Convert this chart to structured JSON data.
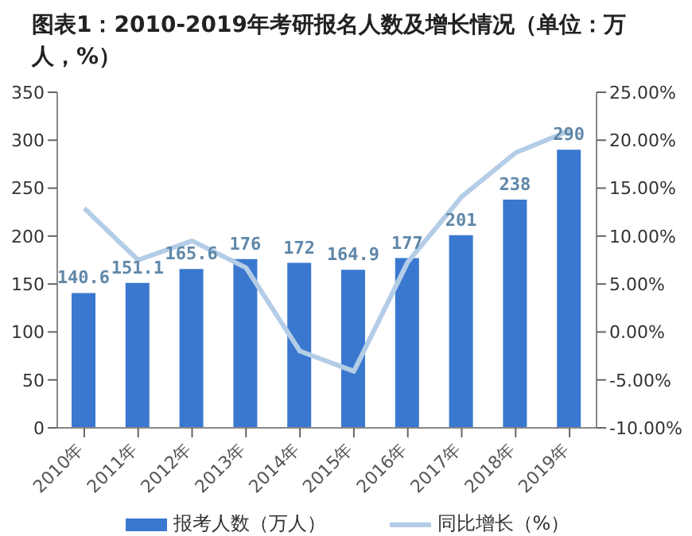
{
  "chart_data": {
    "type": "bar",
    "title": "图表1：2010-2019年考研报名人数及增长情况（单位：万人，%）",
    "categories": [
      "2010年",
      "2011年",
      "2012年",
      "2013年",
      "2014年",
      "2015年",
      "2016年",
      "2017年",
      "2018年",
      "2019年"
    ],
    "series": [
      {
        "name": "报考人数（万人）",
        "color": "#3a78d0",
        "values": [
          140.6,
          151.1,
          165.6,
          176,
          172,
          164.9,
          177,
          201,
          238,
          290
        ],
        "value_labels": [
          "140.6",
          "151.1",
          "165.6",
          "176",
          "172",
          "164.9",
          "177",
          "201",
          "238",
          "290"
        ]
      },
      {
        "name": "同比增长（%）",
        "type": "line",
        "axis": "y2",
        "color": "#b4cde6",
        "values": [
          12.9,
          7.5,
          9.5,
          6.7,
          -2.0,
          -4.1,
          7.3,
          14.1,
          18.7,
          21.0
        ]
      }
    ],
    "ylim": [
      0,
      350
    ],
    "yticks": [
      0,
      50,
      100,
      150,
      200,
      250,
      300,
      350
    ],
    "y2lim": [
      -10,
      25
    ],
    "y2ticks": [
      {
        "value": -10,
        "label": "-10.00%"
      },
      {
        "value": -5,
        "label": "-5.00%"
      },
      {
        "value": 0,
        "label": "0.00%"
      },
      {
        "value": 5,
        "label": "5.00%"
      },
      {
        "value": 10,
        "label": "10.00%"
      },
      {
        "value": 15,
        "label": "15.00%"
      },
      {
        "value": 20,
        "label": "20.00%"
      },
      {
        "value": 25,
        "label": "25.00%"
      }
    ],
    "grid": false,
    "legend": "bottom",
    "marker": "none"
  }
}
